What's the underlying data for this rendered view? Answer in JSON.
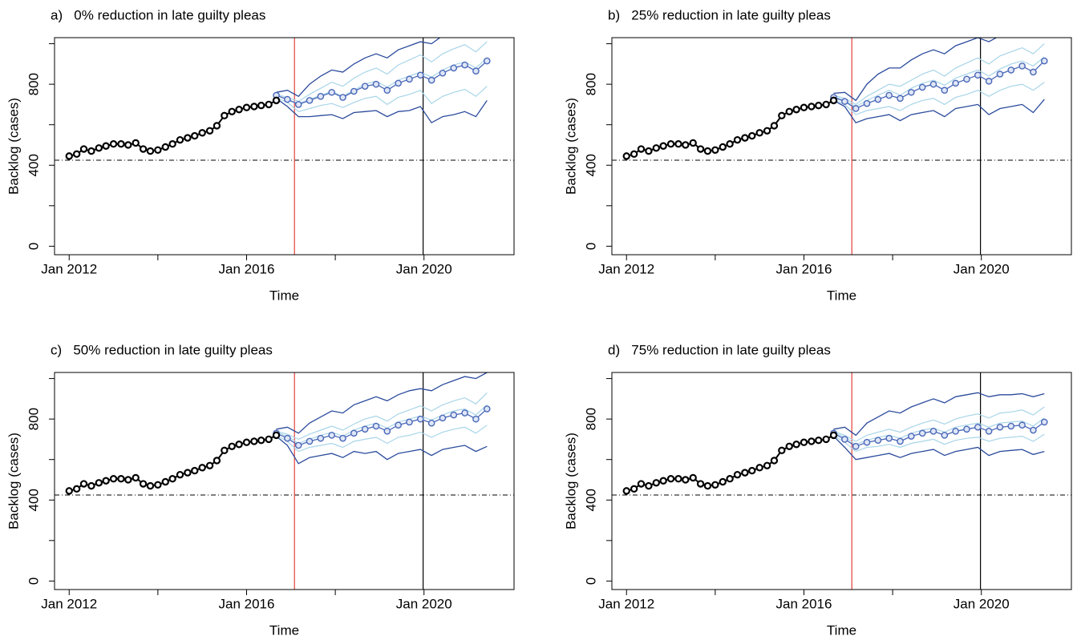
{
  "chart_data": [
    {
      "type": "line",
      "title": "a)   0% reduction in late guilty pleas",
      "x_label": "Time",
      "y_label": "Backlog (cases)",
      "xlim": [
        2011.67,
        2022.03
      ],
      "ylim": [
        -42,
        1030
      ],
      "xticks": [
        {
          "value": 2012,
          "label": "Jan 2012"
        },
        {
          "value": 2014,
          "label": null
        },
        {
          "value": 2016,
          "label": "Jan 2016"
        },
        {
          "value": 2018,
          "label": null
        },
        {
          "value": 2020,
          "label": "Jan 2020"
        }
      ],
      "yticks": [
        0,
        {
          "value": 200,
          "label": null
        },
        400,
        {
          "value": 600,
          "label": null
        },
        800,
        {
          "value": 1000,
          "label": null
        }
      ],
      "vlines": [
        {
          "value": 2017.08,
          "color": "#e0403a"
        },
        {
          "value": 2019.98,
          "color": "#000000"
        }
      ],
      "hline": 425,
      "observed": {
        "color": "#000000",
        "x": [
          2012,
          2012.17,
          2012.33,
          2012.5,
          2012.67,
          2012.83,
          2013,
          2013.17,
          2013.33,
          2013.5,
          2013.67,
          2013.83,
          2014,
          2014.17,
          2014.33,
          2014.5,
          2014.67,
          2014.83,
          2015,
          2015.17,
          2015.33,
          2015.5,
          2015.67,
          2015.83,
          2016,
          2016.17,
          2016.33,
          2016.5,
          2016.67
        ],
        "values": [
          445,
          455,
          480,
          470,
          485,
          495,
          505,
          505,
          500,
          510,
          480,
          470,
          475,
          490,
          505,
          525,
          535,
          545,
          560,
          570,
          595,
          645,
          665,
          675,
          685,
          690,
          695,
          700,
          720
        ]
      },
      "forecast": {
        "x": [
          2016.67,
          2016.92,
          2017.17,
          2017.42,
          2017.67,
          2017.92,
          2018.17,
          2018.42,
          2018.67,
          2018.92,
          2019.17,
          2019.42,
          2019.67,
          2019.92,
          2020.17,
          2020.42,
          2020.67,
          2020.92,
          2021.17,
          2021.42
        ],
        "median_color": "#4a68b8",
        "bound_color": "#2a4a9c",
        "sim_color": "#a8d5e8",
        "median": [
          745,
          725,
          700,
          720,
          740,
          760,
          735,
          765,
          790,
          800,
          770,
          805,
          825,
          845,
          820,
          855,
          880,
          895,
          865,
          915
        ],
        "upper": [
          760,
          770,
          740,
          800,
          840,
          870,
          860,
          900,
          930,
          950,
          930,
          970,
          990,
          1010,
          1000,
          1040,
          1060,
          1070,
          1050,
          1090
        ],
        "lower": [
          730,
          690,
          640,
          640,
          645,
          650,
          630,
          660,
          665,
          670,
          640,
          665,
          670,
          690,
          610,
          640,
          650,
          665,
          640,
          720
        ],
        "simulations": [
          [
            750,
            735,
            715,
            750,
            780,
            810,
            790,
            830,
            860,
            880,
            850,
            895,
            920,
            945,
            910,
            950,
            975,
            995,
            960,
            1010
          ],
          [
            735,
            710,
            665,
            680,
            695,
            705,
            685,
            710,
            730,
            740,
            700,
            735,
            750,
            770,
            705,
            740,
            760,
            775,
            740,
            790
          ],
          [
            745,
            725,
            705,
            725,
            745,
            765,
            740,
            770,
            800,
            815,
            785,
            820,
            840,
            860,
            835,
            870,
            895,
            910,
            880,
            930
          ]
        ]
      }
    },
    {
      "type": "line",
      "title": "b)   25% reduction in late guilty pleas",
      "x_label": "Time",
      "y_label": "Backlog (cases)",
      "xlim": [
        2011.67,
        2022.03
      ],
      "ylim": [
        -42,
        1030
      ],
      "xticks": [
        {
          "value": 2012,
          "label": "Jan 2012"
        },
        {
          "value": 2014,
          "label": null
        },
        {
          "value": 2016,
          "label": "Jan 2016"
        },
        {
          "value": 2018,
          "label": null
        },
        {
          "value": 2020,
          "label": "Jan 2020"
        }
      ],
      "yticks": [
        0,
        {
          "value": 200,
          "label": null
        },
        400,
        {
          "value": 600,
          "label": null
        },
        800,
        {
          "value": 1000,
          "label": null
        }
      ],
      "vlines": [
        {
          "value": 2017.08,
          "color": "#e0403a"
        },
        {
          "value": 2019.98,
          "color": "#000000"
        }
      ],
      "hline": 425,
      "observed": {
        "color": "#000000",
        "x": [
          2012,
          2012.17,
          2012.33,
          2012.5,
          2012.67,
          2012.83,
          2013,
          2013.17,
          2013.33,
          2013.5,
          2013.67,
          2013.83,
          2014,
          2014.17,
          2014.33,
          2014.5,
          2014.67,
          2014.83,
          2015,
          2015.17,
          2015.33,
          2015.5,
          2015.67,
          2015.83,
          2016,
          2016.17,
          2016.33,
          2016.5,
          2016.67
        ],
        "values": [
          445,
          455,
          480,
          470,
          485,
          495,
          505,
          505,
          500,
          510,
          480,
          470,
          475,
          490,
          505,
          525,
          535,
          545,
          560,
          570,
          595,
          645,
          665,
          675,
          685,
          690,
          695,
          700,
          720
        ]
      },
      "forecast": {
        "x": [
          2016.67,
          2016.92,
          2017.17,
          2017.42,
          2017.67,
          2017.92,
          2018.17,
          2018.42,
          2018.67,
          2018.92,
          2019.17,
          2019.42,
          2019.67,
          2019.92,
          2020.17,
          2020.42,
          2020.67,
          2020.92,
          2021.17,
          2021.42
        ],
        "median_color": "#4a68b8",
        "bound_color": "#2a4a9c",
        "sim_color": "#a8d5e8",
        "median": [
          735,
          715,
          680,
          705,
          725,
          745,
          730,
          760,
          785,
          800,
          770,
          805,
          825,
          845,
          815,
          850,
          870,
          890,
          860,
          915
        ],
        "upper": [
          755,
          760,
          720,
          800,
          850,
          880,
          880,
          920,
          950,
          970,
          950,
          990,
          1010,
          1030,
          1010,
          1040,
          1060,
          1070,
          1060,
          1090
        ],
        "lower": [
          720,
          690,
          610,
          630,
          640,
          650,
          620,
          650,
          660,
          670,
          640,
          680,
          690,
          700,
          650,
          680,
          690,
          700,
          660,
          725
        ],
        "simulations": [
          [
            745,
            730,
            700,
            740,
            770,
            800,
            790,
            820,
            850,
            870,
            840,
            880,
            905,
            930,
            900,
            940,
            960,
            980,
            950,
            1000
          ],
          [
            725,
            700,
            650,
            670,
            680,
            690,
            670,
            700,
            720,
            730,
            700,
            735,
            750,
            770,
            740,
            770,
            790,
            800,
            770,
            810
          ],
          [
            740,
            720,
            690,
            720,
            745,
            770,
            745,
            780,
            805,
            820,
            795,
            830,
            850,
            870,
            840,
            875,
            900,
            915,
            890,
            935
          ]
        ]
      }
    },
    {
      "type": "line",
      "title": "c)   50% reduction in late guilty pleas",
      "x_label": "Time",
      "y_label": "Backlog (cases)",
      "xlim": [
        2011.67,
        2022.03
      ],
      "ylim": [
        -42,
        1030
      ],
      "xticks": [
        {
          "value": 2012,
          "label": "Jan 2012"
        },
        {
          "value": 2014,
          "label": null
        },
        {
          "value": 2016,
          "label": "Jan 2016"
        },
        {
          "value": 2018,
          "label": null
        },
        {
          "value": 2020,
          "label": "Jan 2020"
        }
      ],
      "yticks": [
        0,
        {
          "value": 200,
          "label": null
        },
        400,
        {
          "value": 600,
          "label": null
        },
        800,
        {
          "value": 1000,
          "label": null
        }
      ],
      "vlines": [
        {
          "value": 2017.08,
          "color": "#e0403a"
        },
        {
          "value": 2019.98,
          "color": "#000000"
        }
      ],
      "hline": 425,
      "observed": {
        "color": "#000000",
        "x": [
          2012,
          2012.17,
          2012.33,
          2012.5,
          2012.67,
          2012.83,
          2013,
          2013.17,
          2013.33,
          2013.5,
          2013.67,
          2013.83,
          2014,
          2014.17,
          2014.33,
          2014.5,
          2014.67,
          2014.83,
          2015,
          2015.17,
          2015.33,
          2015.5,
          2015.67,
          2015.83,
          2016,
          2016.17,
          2016.33,
          2016.5,
          2016.67
        ],
        "values": [
          445,
          455,
          480,
          470,
          485,
          495,
          505,
          505,
          500,
          510,
          480,
          470,
          475,
          490,
          505,
          525,
          535,
          545,
          560,
          570,
          595,
          645,
          665,
          675,
          685,
          690,
          695,
          700,
          720
        ]
      },
      "forecast": {
        "x": [
          2016.67,
          2016.92,
          2017.17,
          2017.42,
          2017.67,
          2017.92,
          2018.17,
          2018.42,
          2018.67,
          2018.92,
          2019.17,
          2019.42,
          2019.67,
          2019.92,
          2020.17,
          2020.42,
          2020.67,
          2020.92,
          2021.17,
          2021.42
        ],
        "median_color": "#4a68b8",
        "bound_color": "#2a4a9c",
        "sim_color": "#a8d5e8",
        "median": [
          730,
          705,
          670,
          690,
          705,
          720,
          705,
          730,
          750,
          765,
          740,
          770,
          785,
          800,
          780,
          805,
          820,
          830,
          800,
          850
        ],
        "upper": [
          750,
          760,
          730,
          780,
          810,
          840,
          830,
          870,
          890,
          910,
          890,
          920,
          940,
          950,
          940,
          970,
          990,
          1010,
          1000,
          1030
        ],
        "lower": [
          715,
          670,
          580,
          610,
          620,
          630,
          610,
          640,
          630,
          640,
          600,
          630,
          640,
          650,
          620,
          650,
          660,
          670,
          640,
          665
        ],
        "simulations": [
          [
            740,
            725,
            700,
            725,
            745,
            765,
            745,
            775,
            800,
            815,
            790,
            825,
            845,
            865,
            840,
            870,
            890,
            905,
            875,
            930
          ],
          [
            720,
            690,
            640,
            660,
            670,
            680,
            660,
            690,
            700,
            710,
            680,
            710,
            720,
            735,
            710,
            735,
            750,
            760,
            730,
            770
          ],
          [
            735,
            715,
            680,
            700,
            720,
            735,
            715,
            745,
            765,
            780,
            755,
            785,
            800,
            815,
            795,
            820,
            840,
            850,
            820,
            870
          ]
        ]
      }
    },
    {
      "type": "line",
      "title": "d)   75% reduction in late guilty pleas",
      "x_label": "Time",
      "y_label": "Backlog (cases)",
      "xlim": [
        2011.67,
        2022.03
      ],
      "ylim": [
        -42,
        1030
      ],
      "xticks": [
        {
          "value": 2012,
          "label": "Jan 2012"
        },
        {
          "value": 2014,
          "label": null
        },
        {
          "value": 2016,
          "label": "Jan 2016"
        },
        {
          "value": 2018,
          "label": null
        },
        {
          "value": 2020,
          "label": "Jan 2020"
        }
      ],
      "yticks": [
        0,
        {
          "value": 200,
          "label": null
        },
        400,
        {
          "value": 600,
          "label": null
        },
        800,
        {
          "value": 1000,
          "label": null
        }
      ],
      "vlines": [
        {
          "value": 2017.08,
          "color": "#e0403a"
        },
        {
          "value": 2019.98,
          "color": "#000000"
        }
      ],
      "hline": 425,
      "observed": {
        "color": "#000000",
        "x": [
          2012,
          2012.17,
          2012.33,
          2012.5,
          2012.67,
          2012.83,
          2013,
          2013.17,
          2013.33,
          2013.5,
          2013.67,
          2013.83,
          2014,
          2014.17,
          2014.33,
          2014.5,
          2014.67,
          2014.83,
          2015,
          2015.17,
          2015.33,
          2015.5,
          2015.67,
          2015.83,
          2016,
          2016.17,
          2016.33,
          2016.5,
          2016.67
        ],
        "values": [
          445,
          455,
          480,
          470,
          485,
          495,
          505,
          505,
          500,
          510,
          480,
          470,
          475,
          490,
          505,
          525,
          535,
          545,
          560,
          570,
          595,
          645,
          665,
          675,
          685,
          690,
          695,
          700,
          720
        ]
      },
      "forecast": {
        "x": [
          2016.67,
          2016.92,
          2017.17,
          2017.42,
          2017.67,
          2017.92,
          2018.17,
          2018.42,
          2018.67,
          2018.92,
          2019.17,
          2019.42,
          2019.67,
          2019.92,
          2020.17,
          2020.42,
          2020.67,
          2020.92,
          2021.17,
          2021.42
        ],
        "median_color": "#4a68b8",
        "bound_color": "#2a4a9c",
        "sim_color": "#a8d5e8",
        "median": [
          730,
          700,
          665,
          685,
          695,
          705,
          690,
          715,
          730,
          740,
          720,
          740,
          750,
          760,
          740,
          760,
          765,
          770,
          745,
          785
        ],
        "upper": [
          750,
          760,
          720,
          780,
          810,
          840,
          830,
          860,
          880,
          900,
          880,
          910,
          920,
          930,
          910,
          920,
          920,
          925,
          910,
          925
        ],
        "lower": [
          715,
          660,
          600,
          610,
          620,
          630,
          610,
          630,
          640,
          650,
          620,
          640,
          650,
          660,
          620,
          640,
          645,
          650,
          625,
          640
        ],
        "simulations": [
          [
            740,
            720,
            690,
            720,
            735,
            750,
            735,
            760,
            780,
            795,
            775,
            800,
            815,
            825,
            805,
            830,
            835,
            845,
            820,
            860
          ],
          [
            720,
            685,
            640,
            660,
            665,
            675,
            660,
            680,
            690,
            700,
            675,
            695,
            705,
            710,
            690,
            705,
            710,
            715,
            690,
            725
          ],
          [
            735,
            710,
            675,
            695,
            710,
            720,
            705,
            730,
            745,
            755,
            735,
            760,
            770,
            780,
            760,
            780,
            785,
            790,
            765,
            805
          ]
        ]
      }
    }
  ]
}
